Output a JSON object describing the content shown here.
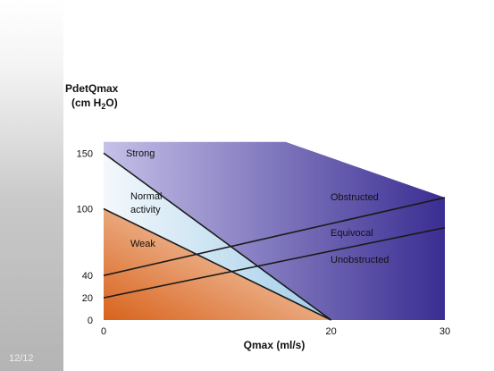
{
  "slide": {
    "page_number": "12/12"
  },
  "chart_data": {
    "type": "line",
    "title": "",
    "xlabel": "Qmax (ml/s)",
    "ylabel_line1": "PdetQmax",
    "ylabel_line2_prefix": "(cm H",
    "ylabel_subscript": "2",
    "ylabel_line2_suffix": "O)",
    "xlim": [
      0,
      30
    ],
    "ylim": [
      0,
      160
    ],
    "x_ticks": [
      0,
      20,
      30
    ],
    "y_ticks": [
      0,
      20,
      40,
      100,
      150
    ],
    "contractility_zones": {
      "boundaries": [
        {
          "name": "strong-normal",
          "points": [
            [
              0,
              150
            ],
            [
              20,
              0
            ]
          ]
        },
        {
          "name": "normal-weak",
          "points": [
            [
              0,
              100
            ],
            [
              20,
              0
            ]
          ]
        }
      ],
      "upper_edge": [
        [
          0,
          160
        ],
        [
          16,
          160
        ],
        [
          30,
          110
        ]
      ]
    },
    "obstruction_lines": [
      {
        "name": "obstructed-equivocal",
        "points": [
          [
            0,
            40
          ],
          [
            30,
            110
          ]
        ]
      },
      {
        "name": "equivocal-unobstructed",
        "points": [
          [
            0,
            20
          ],
          [
            30,
            83
          ]
        ]
      }
    ],
    "zone_labels": [
      {
        "name": "strong",
        "text": "Strong"
      },
      {
        "name": "normal-activity-line1",
        "text": "Normal"
      },
      {
        "name": "normal-activity-line2",
        "text": "activity"
      },
      {
        "name": "weak",
        "text": "Weak"
      },
      {
        "name": "obstructed",
        "text": "Obstructed"
      },
      {
        "name": "equivocal",
        "text": "Equivocal"
      },
      {
        "name": "unobstructed",
        "text": "Unobstructed"
      }
    ],
    "colors": {
      "strong": "#3a2d92",
      "strong_light": "#c5c1e8",
      "normal": "#9fcde9",
      "normal_light": "#f4f8fc",
      "weak": "#d8631c",
      "weak_light": "#fbeadc",
      "line": "#1a1a1a"
    }
  }
}
